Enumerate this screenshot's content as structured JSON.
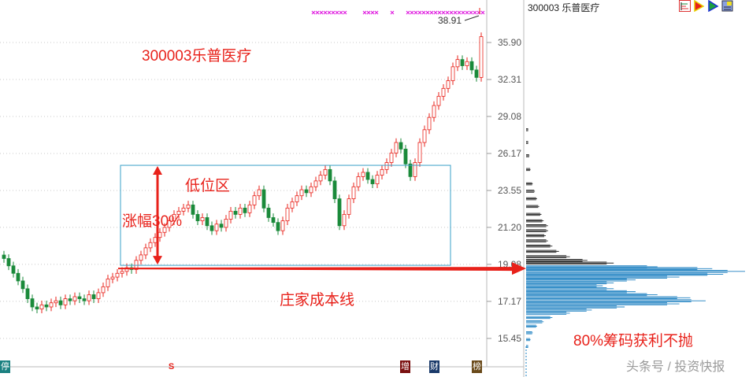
{
  "header": {
    "stock_title": "300003 乐普医疗"
  },
  "annotations": {
    "stock_name": "300003乐普医疗",
    "low_zone": "低位区",
    "rise": "涨幅30%",
    "cost_line": "庄家成本线",
    "chips_note": "80%筹码获利不抛",
    "high_label": "38.91"
  },
  "markers": {
    "stop": "停",
    "s": "S",
    "add": "增",
    "fin": "财",
    "rank": "榜"
  },
  "watermark": "头条号 / 投资快报",
  "colors": {
    "up": "#e8211a",
    "down": "#1a8a3a",
    "chip_profit": "#222222",
    "chip_loss": "#1a7fc0",
    "box": "#3aa0c8",
    "annotation": "#e8211a",
    "marks": "#e020e0"
  },
  "toolbar_icons": [
    "chip-chart-icon",
    "red-flag-icon",
    "green-flag-icon",
    "info-panel-icon"
  ],
  "chart_data": {
    "type": "candlestick",
    "yscale": "log",
    "ylim": [
      14.6,
      39.5
    ],
    "yticks": [
      "35.90",
      "32.31",
      "29.08",
      "26.17",
      "23.55",
      "21.20",
      "19.08",
      "17.17",
      "15.45"
    ],
    "grid": true,
    "closes": [
      19.4,
      19.0,
      18.6,
      18.2,
      17.8,
      17.3,
      16.9,
      16.8,
      17.0,
      16.9,
      17.1,
      17.2,
      17.0,
      17.3,
      17.2,
      17.4,
      17.3,
      17.2,
      17.5,
      17.3,
      17.6,
      17.9,
      18.3,
      18.4,
      18.6,
      18.7,
      18.9,
      18.8,
      19.3,
      19.6,
      20.0,
      20.3,
      20.6,
      20.9,
      21.2,
      21.6,
      22.0,
      22.2,
      22.4,
      22.6,
      22.0,
      21.6,
      21.8,
      21.3,
      21.0,
      21.4,
      21.2,
      21.7,
      22.2,
      22.0,
      22.4,
      22.1,
      22.6,
      23.2,
      23.6,
      22.4,
      21.8,
      21.5,
      21.0,
      21.6,
      22.4,
      22.8,
      23.2,
      23.6,
      23.4,
      23.8,
      24.2,
      24.6,
      25.0,
      24.2,
      23.0,
      21.3,
      22.0,
      23.0,
      23.8,
      24.5,
      24.8,
      24.3,
      24.0,
      24.6,
      25.0,
      25.5,
      26.2,
      27.0,
      26.5,
      25.4,
      24.5,
      25.5,
      27.0,
      28.0,
      29.0,
      30.0,
      30.8,
      31.5,
      32.2,
      33.5,
      34.2,
      33.6,
      34.0,
      33.2,
      32.5,
      36.5
    ],
    "cost_line": 18.9,
    "low_zone": [
      18.9,
      25.3
    ],
    "chip_distribution": [
      [
        28.0,
        0.01
      ],
      [
        27.0,
        0.01
      ],
      [
        26.0,
        0.015
      ],
      [
        25.0,
        0.02
      ],
      [
        24.0,
        0.03
      ],
      [
        23.5,
        0.04
      ],
      [
        23.0,
        0.05
      ],
      [
        22.5,
        0.06
      ],
      [
        22.0,
        0.07
      ],
      [
        21.6,
        0.08
      ],
      [
        21.3,
        0.1
      ],
      [
        21.0,
        0.1
      ],
      [
        20.7,
        0.09
      ],
      [
        20.4,
        0.1
      ],
      [
        20.1,
        0.12
      ],
      [
        19.8,
        0.15
      ],
      [
        19.5,
        0.2
      ],
      [
        19.3,
        0.28
      ],
      [
        19.15,
        0.4
      ],
      [
        18.95,
        0.6
      ],
      [
        18.85,
        0.85
      ],
      [
        18.7,
        1.0
      ],
      [
        18.55,
        0.9
      ],
      [
        18.4,
        0.7
      ],
      [
        18.25,
        0.5
      ],
      [
        18.1,
        0.4
      ],
      [
        17.95,
        0.35
      ],
      [
        17.8,
        0.4
      ],
      [
        17.65,
        0.5
      ],
      [
        17.5,
        0.6
      ],
      [
        17.35,
        0.75
      ],
      [
        17.2,
        0.82
      ],
      [
        17.05,
        0.7
      ],
      [
        16.9,
        0.45
      ],
      [
        16.75,
        0.3
      ],
      [
        16.6,
        0.2
      ],
      [
        16.4,
        0.12
      ],
      [
        16.2,
        0.08
      ],
      [
        16.0,
        0.05
      ],
      [
        15.7,
        0.03
      ],
      [
        15.4,
        0.02
      ],
      [
        15.1,
        0.01
      ]
    ],
    "profit_threshold": 19.08
  }
}
